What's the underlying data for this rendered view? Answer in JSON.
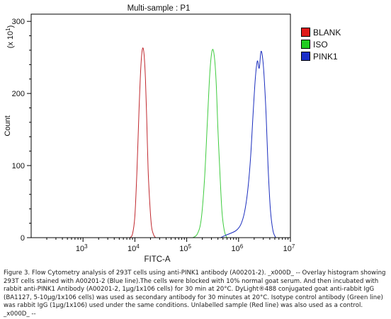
{
  "chart_data": {
    "type": "line",
    "title": "Multi-sample : P1",
    "xlabel": "FITC-A",
    "ylabel": "Count",
    "y_scale_label": "(x 10^1)",
    "x_scale": "log",
    "xlim": [
      100,
      10000000
    ],
    "ylim": [
      0,
      310
    ],
    "x_ticks": [
      {
        "value": 1000,
        "base": "10",
        "exp": "3"
      },
      {
        "value": 10000,
        "base": "10",
        "exp": "4"
      },
      {
        "value": 100000,
        "base": "10",
        "exp": "5"
      },
      {
        "value": 1000000,
        "base": "10",
        "exp": "6"
      },
      {
        "value": 10000000,
        "base": "10",
        "exp": "7"
      }
    ],
    "y_ticks": [
      0,
      100,
      200,
      300
    ],
    "legend_position": "right",
    "grid": false,
    "series": [
      {
        "name": "BLANK",
        "color": "#c0282e",
        "legend_color": "#e01818",
        "x": [
          8000,
          9000,
          10000,
          11000,
          12000,
          13000,
          14000,
          15000,
          16000,
          17000,
          18000,
          19500,
          21000,
          23000,
          25000
        ],
        "y": [
          0,
          5,
          30,
          95,
          175,
          235,
          262,
          255,
          220,
          160,
          95,
          45,
          15,
          4,
          0
        ]
      },
      {
        "name": "ISO",
        "color": "#3ecb3e",
        "legend_color": "#22cc22",
        "x": [
          130000,
          160000,
          190000,
          220000,
          250000,
          280000,
          310000,
          340000,
          370000,
          400000,
          440000,
          480000,
          530000,
          590000
        ],
        "y": [
          0,
          5,
          25,
          80,
          160,
          230,
          260,
          252,
          215,
          150,
          85,
          35,
          10,
          0
        ]
      },
      {
        "name": "PINK1",
        "color": "#1a2dbe",
        "legend_color": "#1a2dc8",
        "x": [
          450000,
          550000,
          700000,
          900000,
          1100000,
          1300000,
          1500000,
          1700000,
          1900000,
          2100000,
          2300000,
          2500000,
          2700000,
          2900000,
          3100000,
          3400000,
          3700000,
          4100000,
          4600000,
          5200000
        ],
        "y": [
          0,
          3,
          6,
          10,
          18,
          35,
          65,
          110,
          170,
          220,
          245,
          235,
          258,
          250,
          225,
          170,
          100,
          40,
          10,
          0
        ]
      }
    ]
  },
  "caption": "Figure 3. Flow Cytometry analysis of 293T cells using anti-PINK1 antibody (A00201-2). _x000D_ -- Overlay histogram showing 293T cells stained with A00201-2 (Blue line).The cells were blocked with 10% normal goat serum. And then incubated with rabbit anti-PINK1 Antibody (A00201-2, 1μg/1x106 cells) for 30 min at 20°C. DyLight®488 conjugated goat anti-rabbit IgG (BA1127, 5-10μg/1x106 cells) was used as secondary antibody for 30 minutes at 20°C. Isotype control antibody (Green line) was rabbit IgG (1μg/1x106) used under the same conditions. Unlabelled sample (Red line) was also used as a control. _x000D_ --"
}
